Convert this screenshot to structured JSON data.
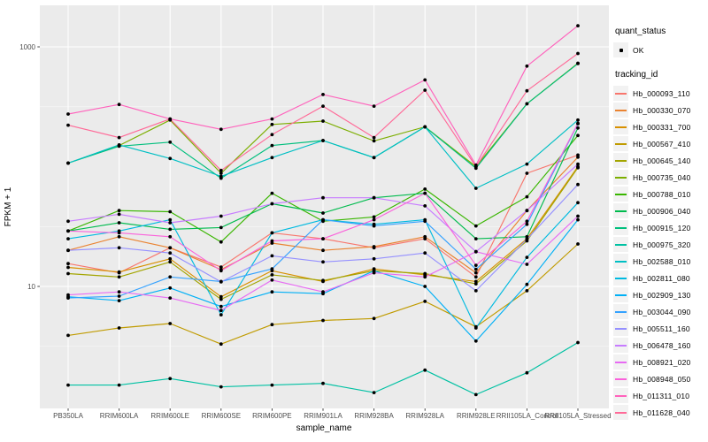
{
  "figure": {
    "y_axis": {
      "title": "FPKM + 1"
    },
    "x_axis": {
      "title": "sample_name"
    },
    "legend": {
      "quant_status_title": "quant_status",
      "quant_status_items": [
        "OK"
      ],
      "tracking_id_title": "tracking_id"
    }
  },
  "chart_data": {
    "type": "line",
    "title": "",
    "xlabel": "sample_name",
    "ylabel": "FPKM + 1",
    "y_scale": "log10",
    "ylim": [
      0.95,
      2200
    ],
    "grid": "on",
    "legend_position": "right",
    "panel_background": "#EBEBEB",
    "grid_color": "#FFFFFF",
    "marker": {
      "shape": "point",
      "color": "#000000",
      "legend_label": "OK"
    },
    "y_ticks": [
      {
        "value": 10,
        "label": "10"
      },
      {
        "value": 1000,
        "label": "1000"
      }
    ],
    "y_minor_ticks": [
      3.162,
      31.62,
      316.2
    ],
    "categories": [
      "PB350LA",
      "RRIM600LA",
      "RRIM600LE",
      "RRIM600SE",
      "RRIM600PE",
      "RRIM901LA",
      "RRIM928BA",
      "RRIM928LA",
      "RRIM928LE",
      "RRII105LA_Control",
      "RRII105LA_Stressed"
    ],
    "series": [
      {
        "name": "Hb_000093_110",
        "color": "#F8766D",
        "values": [
          15.5,
          13,
          21,
          14.5,
          28,
          25,
          21,
          25,
          12,
          88,
          125
        ]
      },
      {
        "name": "Hb_000330_070",
        "color": "#EA8331",
        "values": [
          20,
          26,
          21,
          13.8,
          23,
          20,
          21.5,
          26,
          13,
          43,
          120
        ]
      },
      {
        "name": "Hb_000331_700",
        "color": "#D89000",
        "values": [
          14.4,
          13.2,
          17,
          8.2,
          13.5,
          11,
          14,
          12.5,
          11,
          25,
          100
        ]
      },
      {
        "name": "Hb_000567_410",
        "color": "#C09B00",
        "values": [
          3.9,
          4.5,
          4.9,
          3.3,
          4.8,
          5.2,
          5.4,
          7.5,
          4.6,
          9.2,
          22.6
        ]
      },
      {
        "name": "Hb_000645_140",
        "color": "#A3A500",
        "values": [
          12.8,
          12,
          16,
          7.8,
          12.5,
          11.2,
          13.5,
          12.8,
          10.5,
          24,
          98
        ]
      },
      {
        "name": "Hb_000735_040",
        "color": "#7CAE00",
        "values": [
          107,
          150,
          245,
          88,
          225,
          240,
          164,
          215,
          100,
          335,
          730
        ]
      },
      {
        "name": "Hb_000788_010",
        "color": "#39B600",
        "values": [
          29,
          43,
          42,
          23.5,
          60,
          35,
          38,
          65,
          32,
          56,
          182
        ]
      },
      {
        "name": "Hb_000906_040",
        "color": "#00BB4E",
        "values": [
          29,
          34,
          30,
          31,
          49,
          41,
          55,
          60,
          25,
          26,
          210
        ]
      },
      {
        "name": "Hb_000915_120",
        "color": "#00BF7D",
        "values": [
          107,
          148,
          160,
          80,
          150,
          165,
          119,
          215,
          97,
          335,
          725
        ]
      },
      {
        "name": "Hb_000975_320",
        "color": "#00C1A3",
        "values": [
          1.5,
          1.5,
          1.7,
          1.45,
          1.5,
          1.55,
          1.3,
          2.0,
          1.25,
          1.9,
          3.4
        ]
      },
      {
        "name": "Hb_002588_010",
        "color": "#00BFC4",
        "values": [
          107,
          152,
          117,
          83,
          119,
          165,
          119,
          215,
          66,
          105,
          245
        ]
      },
      {
        "name": "Hb_002811_080",
        "color": "#00BAE0",
        "values": [
          25,
          29,
          36,
          5.8,
          28,
          36,
          33,
          36,
          4.5,
          17.5,
          50
        ]
      },
      {
        "name": "Hb_002909_130",
        "color": "#00B0F6",
        "values": [
          8.2,
          7.6,
          9.7,
          6.8,
          9.0,
          8.7,
          13.5,
          10,
          3.5,
          10.4,
          36
        ]
      },
      {
        "name": "Hb_003044_090",
        "color": "#35A2FF",
        "values": [
          8.0,
          8.3,
          12,
          11,
          14,
          36,
          32,
          35,
          13.9,
          33,
          228
        ]
      },
      {
        "name": "Hb_005511_160",
        "color": "#9590FF",
        "values": [
          20,
          21,
          19,
          10.9,
          18,
          16,
          17,
          19,
          9.2,
          24.8,
          71
        ]
      },
      {
        "name": "Hb_006478_160",
        "color": "#C77CFF",
        "values": [
          35,
          40,
          34,
          38.6,
          49,
          55,
          55,
          47,
          19.5,
          43,
          105
        ]
      },
      {
        "name": "Hb_008921_020",
        "color": "#E76BF3",
        "values": [
          8.5,
          9.0,
          8.0,
          6.3,
          11.3,
          9.0,
          13,
          12,
          19.5,
          15.3,
          38.6
        ]
      },
      {
        "name": "Hb_008948_050",
        "color": "#FA62DB",
        "values": [
          29,
          28,
          26,
          13.5,
          24,
          25,
          36,
          60,
          15,
          35,
          230
        ]
      },
      {
        "name": "Hb_011311_010",
        "color": "#FF62BC",
        "values": [
          275,
          330,
          250,
          205,
          250,
          400,
          320,
          530,
          103,
          690,
          1500
        ]
      },
      {
        "name": "Hb_011628_040",
        "color": "#FF6A98",
        "values": [
          222,
          175,
          250,
          93,
          185,
          320,
          175,
          435,
          100,
          430,
          880
        ]
      }
    ]
  }
}
